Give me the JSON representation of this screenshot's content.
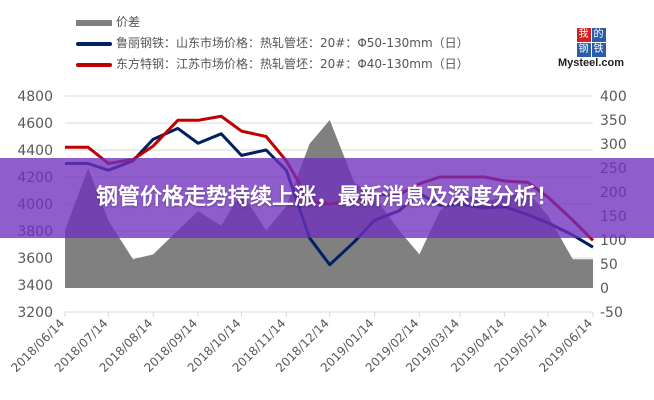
{
  "chart_data": {
    "type": "line",
    "title": "",
    "x": [
      "2018/06/14",
      "2018/06/30",
      "2018/07/14",
      "2018/07/31",
      "2018/08/14",
      "2018/08/31",
      "2018/09/14",
      "2018/09/30",
      "2018/10/14",
      "2018/10/31",
      "2018/11/14",
      "2018/11/30",
      "2018/12/14",
      "2018/12/31",
      "2019/01/14",
      "2019/01/31",
      "2019/02/14",
      "2019/02/28",
      "2019/03/14",
      "2019/03/31",
      "2019/04/14",
      "2019/04/30",
      "2019/05/14",
      "2019/05/31",
      "2019/06/14"
    ],
    "x_tick_labels": [
      "2018/06/14",
      "2018/07/14",
      "2018/08/14",
      "2018/09/14",
      "2018/10/14",
      "2018/11/14",
      "2018/12/14",
      "2019/01/14",
      "2019/02/14",
      "2019/03/14",
      "2019/04/14",
      "2019/05/14",
      "2019/06/14"
    ],
    "left_axis": {
      "range": [
        3200,
        4800
      ],
      "ticks": [
        3200,
        3400,
        3600,
        3800,
        4000,
        4200,
        4400,
        4600,
        4800
      ]
    },
    "right_axis": {
      "range": [
        -50,
        400
      ],
      "ticks": [
        -50,
        0,
        50,
        100,
        150,
        200,
        250,
        300,
        350,
        400
      ]
    },
    "grid": true,
    "legend_placement": "top-left",
    "series": [
      {
        "name": "价差",
        "type": "area",
        "axis": "right",
        "color": "#808080",
        "values": [
          120,
          250,
          140,
          60,
          70,
          120,
          160,
          130,
          200,
          120,
          170,
          300,
          350,
          220,
          190,
          120,
          70,
          160,
          200,
          180,
          190,
          200,
          150,
          60,
          60
        ]
      },
      {
        "name": "鲁丽钢铁：山东市场价格：热轧管坯：20#：Φ50-130mm（日）",
        "type": "line",
        "axis": "left",
        "color": "#002060",
        "values": [
          4300,
          4300,
          4250,
          4320,
          4480,
          4560,
          4450,
          4520,
          4360,
          4400,
          4250,
          3750,
          3550,
          3720,
          3880,
          3950,
          4080,
          3990,
          4000,
          3970,
          3980,
          3920,
          3860,
          3770,
          3680
        ]
      },
      {
        "name": "东方特钢：江苏市场价格：热轧管坯：20#：Φ40-130mm（日）",
        "type": "line",
        "axis": "left",
        "color": "#C00000",
        "values": [
          4420,
          4420,
          4300,
          4330,
          4430,
          4620,
          4620,
          4650,
          4540,
          4500,
          4320,
          4020,
          4000,
          4030,
          4070,
          4070,
          4150,
          4200,
          4200,
          4200,
          4170,
          4160,
          4050,
          3880,
          3730
        ]
      }
    ]
  },
  "logo": {
    "chars": [
      "我",
      "的",
      "钢",
      "铁"
    ],
    "brand": "Mysteel.com"
  },
  "banner": {
    "title": "钢管价格走势持续上涨，最新消息及深度分析！",
    "color": "#7030BE"
  }
}
